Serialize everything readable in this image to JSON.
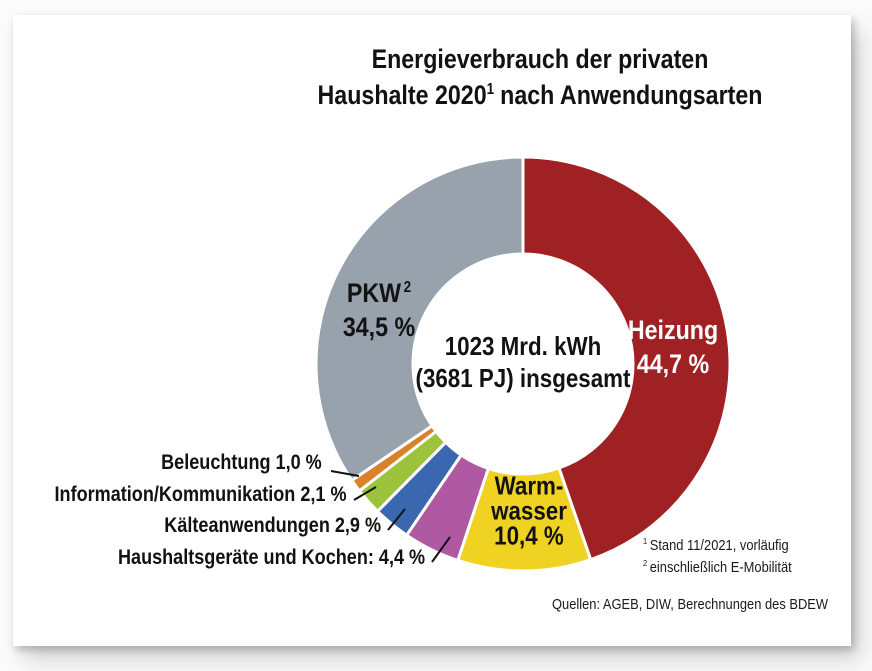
{
  "title": {
    "line1": "Energieverbrauch der privaten",
    "line2_pre": "Haushalte 2020",
    "line2_sup": "1",
    "line2_post": "nach Anwendungsarten"
  },
  "center": {
    "line1": "1023 Mrd. kWh",
    "line2": "(3681 PJ) insgesamt"
  },
  "slice_labels": {
    "heizung": {
      "name": "Heizung",
      "value": "44,7 %"
    },
    "pkw": {
      "name": "PKW",
      "sup": "2",
      "value": "34,5 %"
    },
    "warmwasser": {
      "line1": "Warm-",
      "line2": "wasser",
      "value": "10,4 %"
    },
    "beleuchtung": "Beleuchtung 1,0 %",
    "information": "Information/Kommunikation 2,1 %",
    "kaelte": "Kälteanwendungen 2,9 %",
    "haushalt": "Haushaltsgeräte und Kochen: 4,4 %"
  },
  "footnotes": [
    {
      "sup": "1",
      "text": "Stand 11/2021, vorläufig"
    },
    {
      "sup": "2",
      "text": "einschließlich E-Mobilität"
    }
  ],
  "source": "Quellen: AGEB, DIW, Berechnungen des BDEW",
  "chart_data": {
    "type": "pie",
    "variant": "donut",
    "title": "Energieverbrauch der privaten Haushalte 2020 nach Anwendungsarten",
    "total_label": "1023 Mrd. kWh (3681 PJ) insgesamt",
    "unit": "%",
    "start_angle_deg": 0,
    "direction": "clockwise",
    "legend_position": "none",
    "segments": [
      {
        "id": "heizung",
        "label": "Heizung",
        "value": 44.7,
        "color": "#A02124"
      },
      {
        "id": "warmwasser",
        "label": "Warmwasser",
        "value": 10.4,
        "color": "#F0D322"
      },
      {
        "id": "haushaltsgeraete-und-kochen",
        "label": "Haushaltsgeräte und Kochen",
        "value": 4.4,
        "color": "#B059A3"
      },
      {
        "id": "kaelteanwendungen",
        "label": "Kälteanwendungen",
        "value": 2.9,
        "color": "#3B67B0"
      },
      {
        "id": "information-kommunikation",
        "label": "Information/Kommunikation",
        "value": 2.1,
        "color": "#9DC23C"
      },
      {
        "id": "beleuchtung",
        "label": "Beleuchtung",
        "value": 1.0,
        "color": "#D9812B"
      },
      {
        "id": "pkw",
        "label": "PKW",
        "value": 34.5,
        "color": "#97A2AD",
        "footnote": "2"
      }
    ]
  }
}
